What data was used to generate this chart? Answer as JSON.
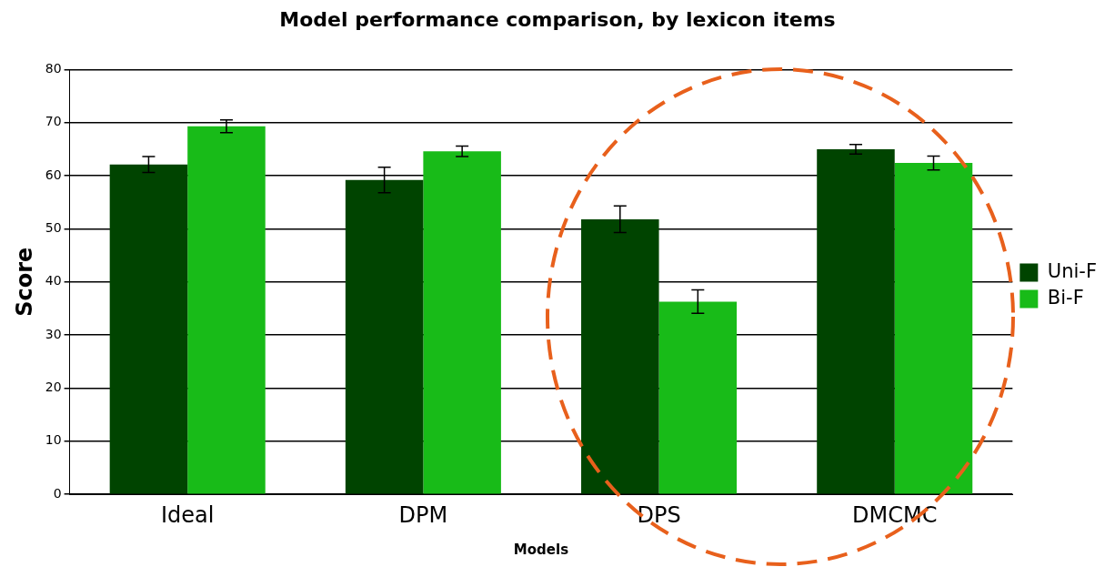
{
  "chart_data": {
    "type": "bar",
    "title": "Model performance comparison, by lexicon items",
    "xlabel": "Models",
    "ylabel": "Score",
    "categories": [
      "Ideal",
      "DPM",
      "DPS",
      "DMCMC"
    ],
    "series": [
      {
        "name": "Uni-F",
        "color": "#004400",
        "values": [
          62.1,
          59.2,
          51.8,
          65.0
        ],
        "errors": [
          1.5,
          2.4,
          2.5,
          0.9
        ]
      },
      {
        "name": "Bi-F",
        "color": "#18bb18",
        "values": [
          69.3,
          64.6,
          36.3,
          62.4
        ],
        "errors": [
          1.2,
          1.0,
          2.2,
          1.3
        ]
      }
    ],
    "ylim": [
      0,
      80
    ],
    "yticks": [
      0,
      10,
      20,
      30,
      40,
      50,
      60,
      70,
      80
    ],
    "grid": "y",
    "legend": "right"
  }
}
